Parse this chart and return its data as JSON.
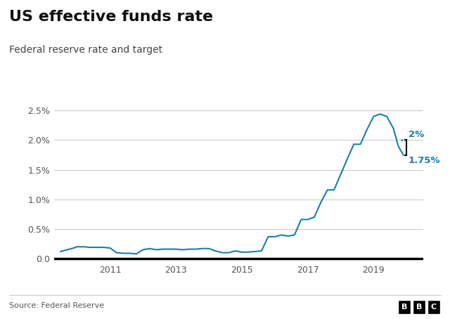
{
  "title": "US effective funds rate",
  "subtitle": "Federal reserve rate and target",
  "source": "Source: Federal Reserve",
  "line_color": "#1a7fa8",
  "background_color": "#ffffff",
  "ylim": [
    -0.05,
    2.75
  ],
  "yticks": [
    0.0,
    0.5,
    1.0,
    1.5,
    2.0,
    2.5
  ],
  "ytick_labels": [
    "0.0",
    "0.5%",
    "1.0%",
    "1.5%",
    "2.0%",
    "2.5%"
  ],
  "annotation_2pct": "2%",
  "annotation_175pct": "1.75%",
  "annotation_color": "#1a7fa8",
  "xlim": [
    2009.3,
    2020.5
  ],
  "xticks": [
    2011,
    2013,
    2015,
    2017,
    2019
  ],
  "series": {
    "dates": [
      2009.5,
      2009.7,
      2009.9,
      2010.0,
      2010.2,
      2010.4,
      2010.6,
      2010.8,
      2011.0,
      2011.2,
      2011.4,
      2011.6,
      2011.8,
      2012.0,
      2012.2,
      2012.4,
      2012.6,
      2012.8,
      2013.0,
      2013.2,
      2013.4,
      2013.6,
      2013.8,
      2014.0,
      2014.2,
      2014.4,
      2014.6,
      2014.8,
      2015.0,
      2015.2,
      2015.4,
      2015.6,
      2015.8,
      2016.0,
      2016.2,
      2016.4,
      2016.6,
      2016.8,
      2017.0,
      2017.2,
      2017.4,
      2017.6,
      2017.8,
      2018.0,
      2018.2,
      2018.4,
      2018.6,
      2018.8,
      2019.0,
      2019.2,
      2019.4,
      2019.6,
      2019.75,
      2019.9
    ],
    "values": [
      0.12,
      0.15,
      0.18,
      0.2,
      0.2,
      0.19,
      0.19,
      0.19,
      0.18,
      0.1,
      0.09,
      0.09,
      0.08,
      0.15,
      0.17,
      0.15,
      0.16,
      0.16,
      0.16,
      0.15,
      0.16,
      0.16,
      0.17,
      0.17,
      0.13,
      0.1,
      0.1,
      0.13,
      0.11,
      0.11,
      0.12,
      0.13,
      0.37,
      0.37,
      0.4,
      0.38,
      0.4,
      0.66,
      0.66,
      0.7,
      0.95,
      1.16,
      1.16,
      1.42,
      1.68,
      1.93,
      1.93,
      2.18,
      2.4,
      2.44,
      2.4,
      2.2,
      1.9,
      1.75
    ]
  }
}
